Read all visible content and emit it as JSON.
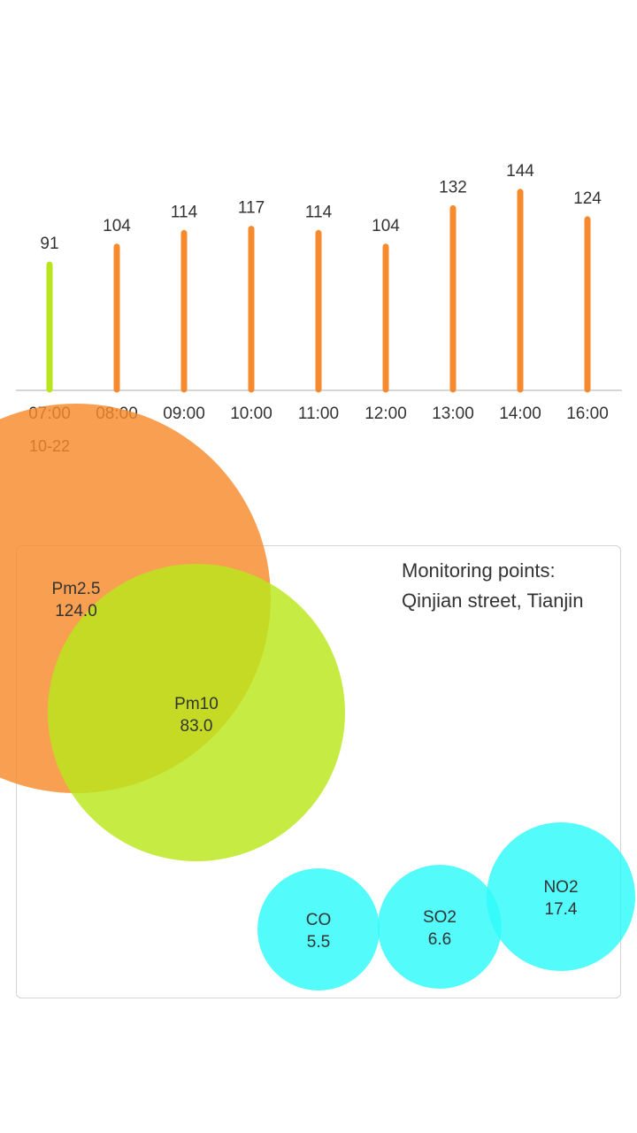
{
  "hourly_chart": {
    "date": "10-22",
    "colors": {
      "good": "#b9e61a",
      "moderate": "#f68a2c",
      "axis": "#c8c8c8"
    }
  },
  "chart_data": [
    {
      "type": "bar",
      "categories": [
        "07:00",
        "08:00",
        "09:00",
        "10:00",
        "11:00",
        "12:00",
        "13:00",
        "14:00",
        "16:00"
      ],
      "values": [
        91,
        104,
        114,
        117,
        114,
        104,
        132,
        144,
        124
      ],
      "bar_colors": [
        "#b9e61a",
        "#f68a2c",
        "#f68a2c",
        "#f68a2c",
        "#f68a2c",
        "#f68a2c",
        "#f68a2c",
        "#f68a2c",
        "#f68a2c"
      ],
      "title": "",
      "xlabel": "10-22",
      "ylabel": "",
      "grid": false
    },
    {
      "type": "bubble",
      "title": "Monitoring points:",
      "subtitle": "Qinjian street, Tianjin",
      "items": [
        {
          "name": "Pm2.5",
          "value": "124.0",
          "color": "#f68a2c"
        },
        {
          "name": "Pm10",
          "value": "83.0",
          "color": "#b9e61a"
        },
        {
          "name": "CO",
          "value": "5.5",
          "color": "#2efafa"
        },
        {
          "name": "SO2",
          "value": "6.6",
          "color": "#2efafa"
        },
        {
          "name": "NO2",
          "value": "17.4",
          "color": "#2efafa"
        }
      ]
    }
  ],
  "monitoring_panel": {
    "heading": "Monitoring points:",
    "location": "Qinjian street, Tianjin"
  }
}
